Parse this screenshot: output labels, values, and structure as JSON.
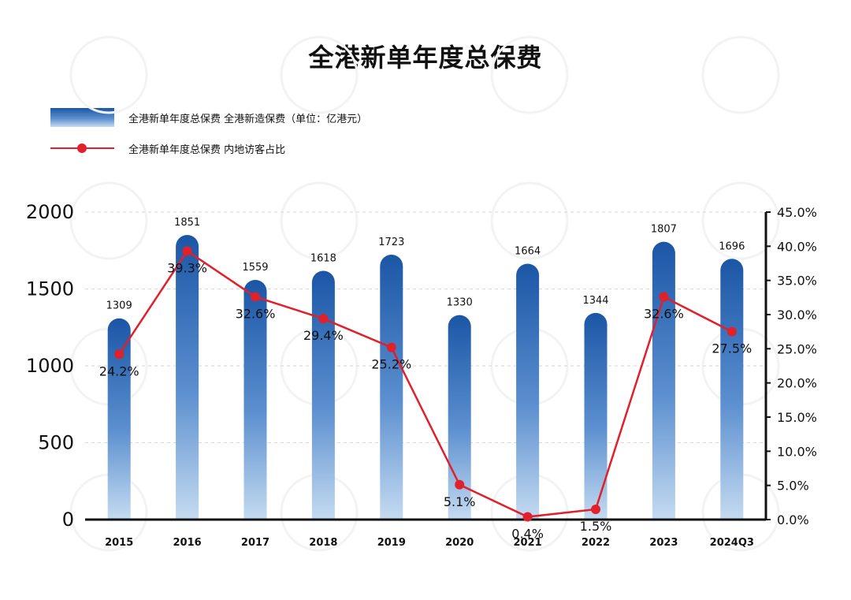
{
  "chart_data": {
    "type": "bar",
    "title": "全港新单年度总保费",
    "categories": [
      "2015",
      "2016",
      "2017",
      "2018",
      "2019",
      "2020",
      "2021",
      "2022",
      "2023",
      "2024Q3"
    ],
    "series": [
      {
        "name": "全港新单年度总保费 全港新造保费（单位：亿港元）",
        "type": "bar",
        "axis": "left",
        "values": [
          1309,
          1851,
          1559,
          1618,
          1723,
          1330,
          1664,
          1344,
          1807,
          1696
        ],
        "labels": [
          "1309",
          "1851",
          "1559",
          "1618",
          "1723",
          "1330",
          "1664",
          "1344",
          "1807",
          "1696"
        ]
      },
      {
        "name": "全港新单年度总保费 内地访客占比",
        "type": "line",
        "axis": "right",
        "values": [
          24.2,
          39.3,
          32.6,
          29.4,
          25.2,
          5.1,
          0.4,
          1.5,
          32.6,
          27.5
        ],
        "labels": [
          "24.2%",
          "39.3%",
          "32.6%",
          "29.4%",
          "25.2%",
          "5.1%",
          "0.4%",
          "1.5%",
          "32.6%",
          "27.5%"
        ]
      }
    ],
    "y_left": {
      "min": 0,
      "max": 2000,
      "ticks": [
        "0",
        "500",
        "1000",
        "1500",
        "2000"
      ],
      "tick_values": [
        0,
        500,
        1000,
        1500,
        2000
      ]
    },
    "y_right": {
      "min": 0,
      "max": 45,
      "ticks": [
        "0.0%",
        "5.0%",
        "10.0%",
        "15.0%",
        "20.0%",
        "25.0%",
        "30.0%",
        "35.0%",
        "40.0%",
        "45.0%"
      ],
      "tick_values": [
        0,
        5,
        10,
        15,
        20,
        25,
        30,
        35,
        40,
        45
      ]
    },
    "grid": true,
    "legend_position": "top-left",
    "colors": {
      "bar_top": "#1b56a6",
      "bar_mid": "#5b8fcf",
      "bar_bottom": "#c5dbf1",
      "line": "#e0202a",
      "grid": "#d6d6d6"
    }
  }
}
